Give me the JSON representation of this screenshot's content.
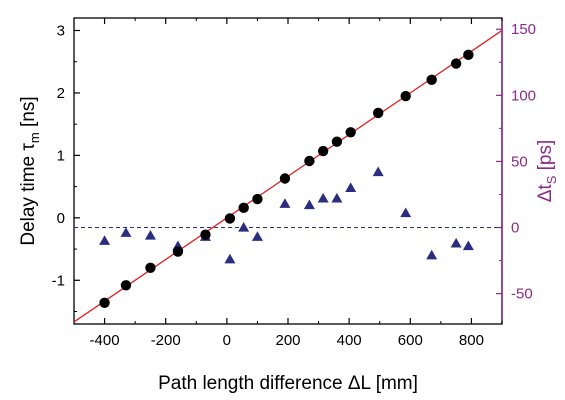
{
  "chart_data": {
    "type": "scatter",
    "xlabel": "Path length difference ΔL [mm]",
    "ylabel": "Delay time τm [ns]",
    "ylabel_main": "Delay time τ",
    "ylabel_sub": "m",
    "ylabel_unit": " [ns]",
    "y2label": "Δts [ps]",
    "y2label_main": "Δt",
    "y2label_sub": "S",
    "y2label_unit": " [ps]",
    "xlim": [
      -500,
      900
    ],
    "ylim": [
      -1.7,
      3.2
    ],
    "y2lim": [
      -73,
      158.5
    ],
    "x_ticks": [
      -400,
      -200,
      0,
      200,
      400,
      600,
      800
    ],
    "x_tick_labels": [
      "-400",
      "-200",
      "0",
      "200",
      "400",
      "600",
      "800"
    ],
    "y_ticks": [
      -1,
      0,
      1,
      2,
      3
    ],
    "y_tick_labels": [
      "-1",
      "0",
      "1",
      "2",
      "3"
    ],
    "y2_ticks": [
      -50,
      0,
      50,
      100,
      150
    ],
    "y2_tick_labels": [
      "-50",
      "0",
      "50",
      "100",
      "150"
    ],
    "grid": false,
    "series": [
      {
        "marker": "circle",
        "color": "#000000",
        "axis": "left",
        "points": [
          {
            "x": -400,
            "y": -1.36
          },
          {
            "x": -330,
            "y": -1.08
          },
          {
            "x": -250,
            "y": -0.8
          },
          {
            "x": -160,
            "y": -0.54
          },
          {
            "x": -70,
            "y": -0.27
          },
          {
            "x": 10,
            "y": -0.01
          },
          {
            "x": 55,
            "y": 0.16
          },
          {
            "x": 100,
            "y": 0.3
          },
          {
            "x": 190,
            "y": 0.63
          },
          {
            "x": 270,
            "y": 0.91
          },
          {
            "x": 315,
            "y": 1.07
          },
          {
            "x": 360,
            "y": 1.22
          },
          {
            "x": 405,
            "y": 1.37
          },
          {
            "x": 495,
            "y": 1.68
          },
          {
            "x": 585,
            "y": 1.95
          },
          {
            "x": 670,
            "y": 2.21
          },
          {
            "x": 750,
            "y": 2.47
          },
          {
            "x": 790,
            "y": 2.61
          }
        ]
      },
      {
        "marker": "triangle",
        "color": "#2b2e80",
        "axis": "right",
        "points": [
          {
            "x": -400,
            "y": -10
          },
          {
            "x": -330,
            "y": -4
          },
          {
            "x": -250,
            "y": -6
          },
          {
            "x": -160,
            "y": -14
          },
          {
            "x": -70,
            "y": -7
          },
          {
            "x": 10,
            "y": -24
          },
          {
            "x": 55,
            "y": 0
          },
          {
            "x": 100,
            "y": -7
          },
          {
            "x": 190,
            "y": 18
          },
          {
            "x": 270,
            "y": 17
          },
          {
            "x": 315,
            "y": 22
          },
          {
            "x": 360,
            "y": 22
          },
          {
            "x": 405,
            "y": 30
          },
          {
            "x": 495,
            "y": 42
          },
          {
            "x": 585,
            "y": 11
          },
          {
            "x": 670,
            "y": -21
          },
          {
            "x": 750,
            "y": -12
          },
          {
            "x": 790,
            "y": -14
          }
        ]
      }
    ],
    "fit_line": {
      "color": "#e02020",
      "slope": 0.003334,
      "intercept": 0.0
    }
  },
  "colors": {
    "left_axis": "#000000",
    "right_axis": "#8b2a8b",
    "fit": "#e02020",
    "triangles": "#2b2e80",
    "dashed_line": "#2b2e80"
  }
}
